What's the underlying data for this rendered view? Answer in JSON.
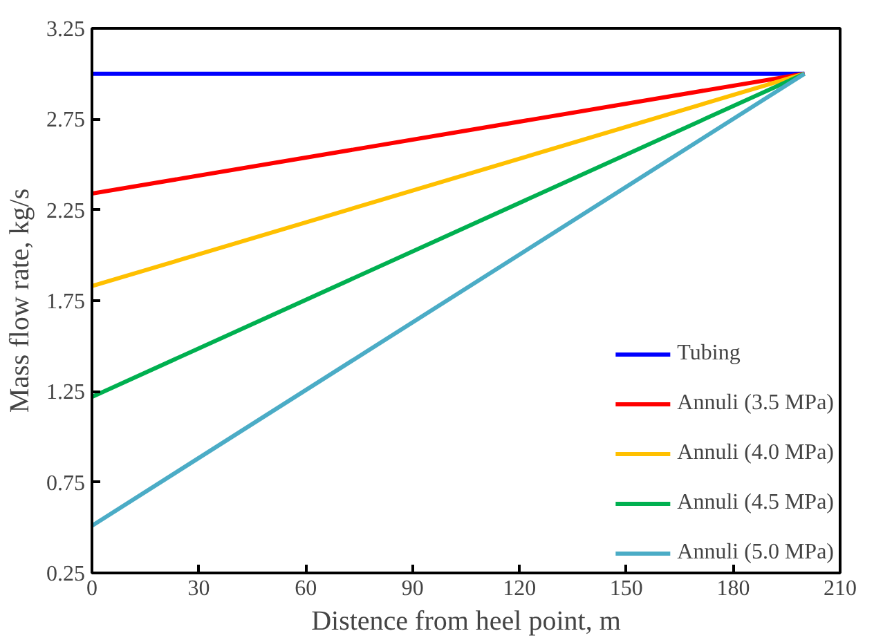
{
  "chart_data": {
    "type": "line",
    "xlabel": "Distence from heel point, m",
    "ylabel": "Mass flow rate, kg/s",
    "x": [
      0,
      200
    ],
    "series": [
      {
        "name": "Tubing",
        "color": "#0000ff",
        "values": [
          3.0,
          3.0
        ]
      },
      {
        "name": "Annuli (3.5 MPa)",
        "color": "#ff0000",
        "values": [
          2.34,
          3.0
        ]
      },
      {
        "name": "Annuli (4.0 MPa)",
        "color": "#ffc000",
        "values": [
          1.83,
          3.0
        ]
      },
      {
        "name": "Annuli (4.5 MPa)",
        "color": "#00b050",
        "values": [
          1.22,
          3.0
        ]
      },
      {
        "name": "Annuli (5.0 MPa)",
        "color": "#4bacc6",
        "values": [
          0.51,
          3.0
        ]
      }
    ],
    "xlim": [
      0,
      210
    ],
    "xticks": [
      0,
      30,
      60,
      90,
      120,
      150,
      180,
      210
    ],
    "ylim": [
      0.25,
      3.25
    ],
    "yticks": [
      0.25,
      0.75,
      1.25,
      1.75,
      2.25,
      2.75,
      3.25
    ],
    "grid": false,
    "legend": "bottom right",
    "line_style": "solid",
    "marker": "none"
  }
}
